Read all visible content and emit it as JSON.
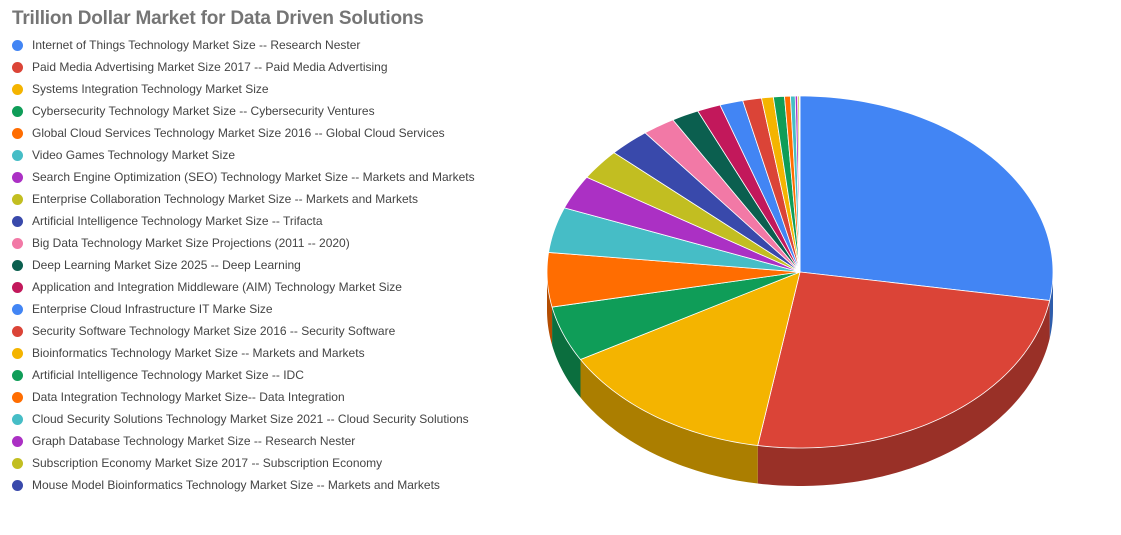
{
  "chart_data": {
    "type": "pie",
    "title": "Trillion Dollar Market for Data Driven Solutions",
    "legend_position": "left",
    "style": "3d",
    "series": [
      {
        "name": "Internet of Things Technology Market Size -- Research Nester",
        "value": 1100,
        "color": "#4285F4"
      },
      {
        "name": "Paid Media Advertising Market Size 2017 -- Paid Media Advertising",
        "value": 1000,
        "color": "#DB4437"
      },
      {
        "name": "Systems Integration Technology Market Size",
        "value": 560,
        "color": "#F4B400"
      },
      {
        "name": "Cybersecurity  Technology Market Size -- Cybersecurity Ventures",
        "value": 203,
        "color": "#0F9D58"
      },
      {
        "name": "Global Cloud Services  Technology Market Size 2016 -- Global Cloud Services",
        "value": 198,
        "color": "#FF6D01"
      },
      {
        "name": "Video Games Technology Market Size",
        "value": 166,
        "color": "#46BDC6"
      },
      {
        "name": "Search Engine Optimization (SEO) Technology Market Size -- Markets and Markets",
        "value": 124,
        "color": "#AB30C4"
      },
      {
        "name": "Enterprise Collaboration Technology Market Size -- Markets and Markets",
        "value": 112,
        "color": "#C2BE21"
      },
      {
        "name": "Artificial Intelligence Technology Market Size -- Trifacta",
        "value": 106,
        "color": "#3949AB"
      },
      {
        "name": "Big Data Technology Market Size Projections (2011 -- 2020)",
        "value": 84,
        "color": "#F279A6"
      },
      {
        "name": "Deep Learning Market Size 2025 -- Deep Learning",
        "value": 70,
        "color": "#0B5F4F"
      },
      {
        "name": "Application and Integration Middleware (AIM) Technology Market Size",
        "value": 60,
        "color": "#C2185B"
      },
      {
        "name": "Enterprise Cloud Infrastructure IT Marke Size",
        "value": 59,
        "color": "#4285F4"
      },
      {
        "name": "Security Software  Technology Market Size 2016 -- Security Software",
        "value": 48,
        "color": "#DB4437"
      },
      {
        "name": "Bioinformatics Technology Market Size -- Markets and Markets",
        "value": 30,
        "color": "#F4B400"
      },
      {
        "name": "Artificial Intelligence Technology Market Size -- IDC",
        "value": 28,
        "color": "#0F9D58"
      },
      {
        "name": "Data Integration Technology Market Size-- Data Integration",
        "value": 15,
        "color": "#FF6D01"
      },
      {
        "name": "Cloud Security Solutions  Technology Market Size 2021 -- Cloud Security Solutions",
        "value": 12,
        "color": "#46BDC6"
      },
      {
        "name": "Graph Database Technology Market Size -- Research Nester",
        "value": 6,
        "color": "#AB30C4"
      },
      {
        "name": "Subscription Economy  Market Size 2017 -- Subscription Economy",
        "value": 4,
        "color": "#C2BE21"
      },
      {
        "name": "Mouse Model Bioinformatics Technology Market Size -- Markets and Markets",
        "value": 2,
        "color": "#3949AB"
      }
    ]
  }
}
